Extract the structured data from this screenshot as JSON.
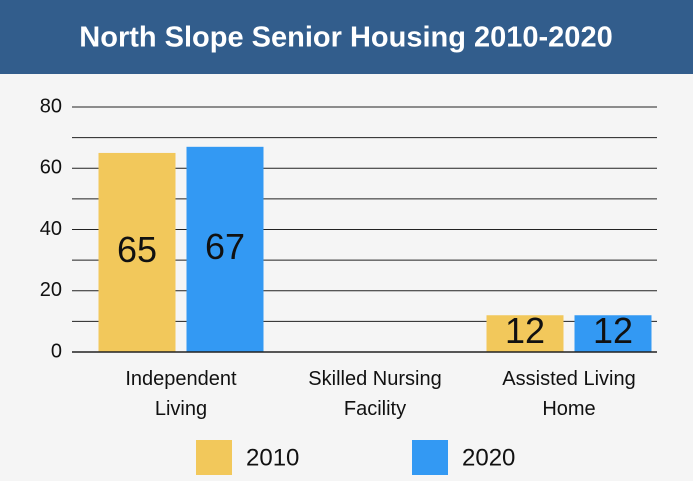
{
  "chart_data": {
    "type": "bar",
    "title": "North Slope Senior Housing 2010-2020",
    "categories": [
      "Independent Living",
      "Skilled Nursing Facility",
      "Assisted Living Home"
    ],
    "series": [
      {
        "name": "2010",
        "color": "#f2c85b",
        "values": [
          65,
          0,
          12
        ]
      },
      {
        "name": "2020",
        "color": "#3399f3",
        "values": [
          67,
          0,
          12
        ]
      }
    ],
    "ylim": [
      0,
      80
    ],
    "yticks": [
      0,
      20,
      40,
      60,
      80
    ],
    "grid_yticks": [
      0,
      10,
      20,
      30,
      40,
      50,
      60,
      70,
      80
    ],
    "grid": true,
    "legend": "bottom"
  }
}
